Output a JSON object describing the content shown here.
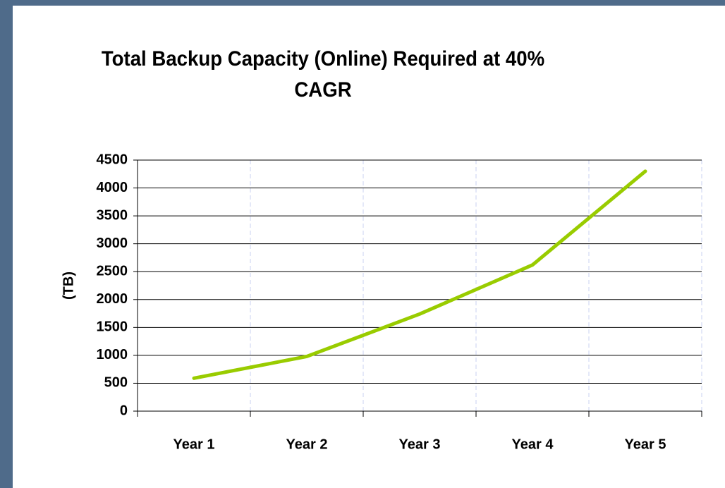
{
  "chart_data": {
    "type": "line",
    "title": "Total Backup Capacity (Online) Required at 40% CAGR",
    "y_label": "(TB)",
    "categories": [
      "Year 1",
      "Year 2",
      "Year 3",
      "Year 4",
      "Year 5"
    ],
    "series": [
      {
        "name": "Total Backup Capacity",
        "color": "#99cc00",
        "values": [
          590,
          980,
          1740,
          2620,
          4300
        ]
      }
    ],
    "ylim": [
      0,
      4500
    ],
    "yticks": [
      0,
      500,
      1000,
      1500,
      2000,
      2500,
      3000,
      3500,
      4000,
      4500
    ],
    "grid": true
  }
}
